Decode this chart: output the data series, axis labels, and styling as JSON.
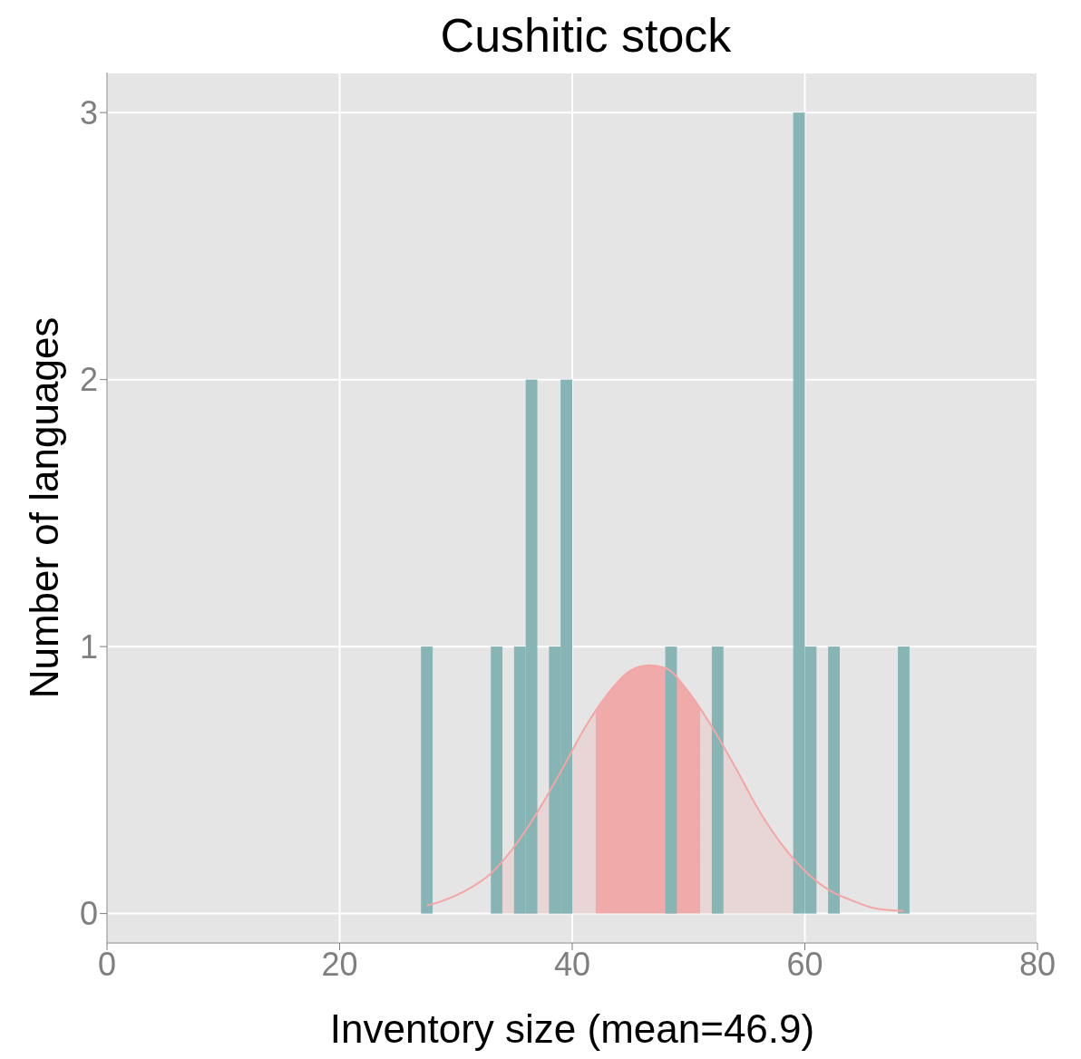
{
  "chart_data": {
    "type": "histogram",
    "title": "Cushitic stock",
    "xlabel": "Inventory size (mean=46.9)",
    "ylabel": "Number of languages",
    "bins": [
      27,
      28,
      29,
      30,
      31,
      32,
      33,
      34,
      35,
      36,
      37,
      38,
      39,
      40,
      41,
      42,
      43,
      44,
      45,
      46,
      47,
      48,
      49,
      50,
      51,
      52,
      53,
      54,
      55,
      56,
      57,
      58,
      59,
      60,
      61,
      62,
      63,
      64,
      65,
      66,
      67,
      68,
      69
    ],
    "values": [
      1,
      0,
      0,
      0,
      0,
      0,
      1,
      0,
      1,
      2,
      0,
      1,
      2,
      0,
      0,
      0,
      0,
      0,
      0,
      0,
      0,
      1,
      0,
      0,
      0,
      1,
      0,
      0,
      0,
      0,
      0,
      0,
      3,
      1,
      0,
      1,
      0,
      0,
      0,
      0,
      0,
      1
    ],
    "color": "#87b4b4",
    "series": [
      {
        "type": "area",
        "color": "#e8d6d6",
        "x": [
          34,
          35,
          37,
          39,
          41,
          42
        ],
        "values": [
          0.2,
          0.25,
          0.38,
          0.53,
          0.69,
          0.76
        ]
      },
      {
        "type": "area",
        "color": "#e8d6d6",
        "x": [
          51,
          52,
          54,
          56,
          58,
          59
        ],
        "values": [
          0.77,
          0.7,
          0.55,
          0.39,
          0.26,
          0.21
        ]
      },
      {
        "type": "area",
        "color": "#f0aaaa",
        "x": [
          42,
          43,
          45,
          46.6,
          48,
          50,
          51
        ],
        "values": [
          0.76,
          0.82,
          0.91,
          0.93,
          0.92,
          0.83,
          0.77
        ]
      },
      {
        "type": "line",
        "color": "#f4a6a6",
        "x": [
          27.5,
          29,
          31,
          33,
          35,
          37,
          39,
          41,
          43,
          45,
          46.6,
          48,
          50,
          52,
          54,
          56,
          58,
          60,
          62,
          64,
          66,
          68.5
        ],
        "values": [
          0.03,
          0.05,
          0.09,
          0.15,
          0.25,
          0.38,
          0.53,
          0.69,
          0.82,
          0.91,
          0.93,
          0.92,
          0.83,
          0.7,
          0.55,
          0.39,
          0.26,
          0.16,
          0.09,
          0.05,
          0.02,
          0.01
        ]
      }
    ],
    "xlim": [
      0,
      80
    ],
    "ylim": [
      -0.11,
      3.15
    ],
    "xticks": [
      0,
      20,
      40,
      60,
      80
    ],
    "yticks": [
      0,
      1,
      2,
      3
    ],
    "grid": true
  }
}
